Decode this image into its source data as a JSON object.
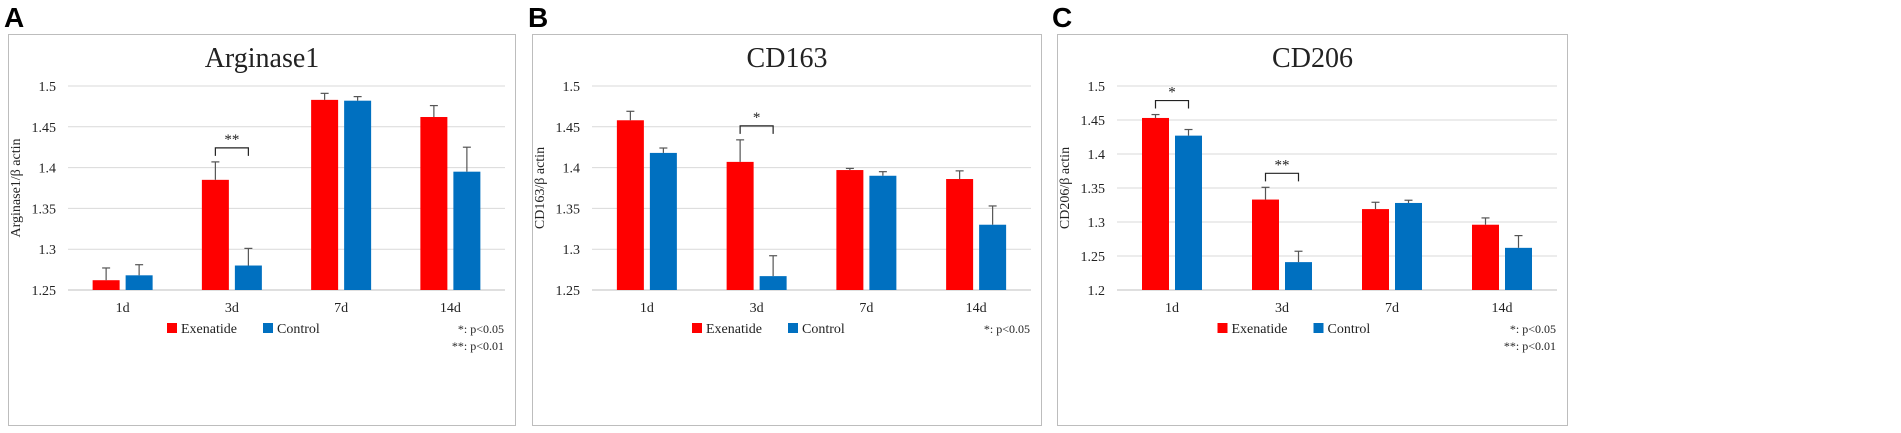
{
  "panels": [
    {
      "letter": "A"
    },
    {
      "letter": "B"
    },
    {
      "letter": "C"
    }
  ],
  "colors": {
    "exenatide": "#ff0000",
    "control": "#0070c0",
    "grid": "#d9d9d9",
    "axis": "#bfbfbf",
    "text": "#222222"
  },
  "chart_data": [
    {
      "type": "bar",
      "title": "Arginase1",
      "ylabel": "Arginase1/β actin",
      "xlabel": "",
      "categories": [
        "1d",
        "3d",
        "7d",
        "14d"
      ],
      "ylim": [
        1.25,
        1.5
      ],
      "yticks": [
        "1.25",
        "1.3",
        "1.35",
        "1.4",
        "1.45",
        "1.5"
      ],
      "series": [
        {
          "name": "Exenatide",
          "values": [
            1.262,
            1.385,
            1.483,
            1.462
          ],
          "errors": [
            0.015,
            0.022,
            0.008,
            0.014
          ]
        },
        {
          "name": "Control",
          "values": [
            1.268,
            1.28,
            1.482,
            1.395
          ],
          "errors": [
            0.013,
            0.021,
            0.005,
            0.03
          ]
        }
      ],
      "annotations": [
        {
          "category": 1,
          "label": "**"
        }
      ],
      "legend": [
        "Exenatide",
        "Control"
      ],
      "notes": [
        "*: p<0.05",
        "**: p<0.01"
      ]
    },
    {
      "type": "bar",
      "title": "CD163",
      "ylabel": "CD163/β actin",
      "xlabel": "",
      "categories": [
        "1d",
        "3d",
        "7d",
        "14d"
      ],
      "ylim": [
        1.25,
        1.5
      ],
      "yticks": [
        "1.25",
        "1.3",
        "1.35",
        "1.4",
        "1.45",
        "1.5"
      ],
      "series": [
        {
          "name": "Exenatide",
          "values": [
            1.458,
            1.407,
            1.397,
            1.386
          ],
          "errors": [
            0.011,
            0.027,
            0.002,
            0.01
          ]
        },
        {
          "name": "Control",
          "values": [
            1.418,
            1.267,
            1.39,
            1.33
          ],
          "errors": [
            0.006,
            0.025,
            0.005,
            0.023
          ]
        }
      ],
      "annotations": [
        {
          "category": 1,
          "label": "*"
        }
      ],
      "legend": [
        "Exenatide",
        "Control"
      ],
      "notes": [
        "*: p<0.05"
      ]
    },
    {
      "type": "bar",
      "title": "CD206",
      "ylabel": "CD206/β actin",
      "xlabel": "",
      "categories": [
        "1d",
        "3d",
        "7d",
        "14d"
      ],
      "ylim": [
        1.2,
        1.5
      ],
      "yticks": [
        "1.2",
        "1.25",
        "1.3",
        "1.35",
        "1.4",
        "1.45",
        "1.5"
      ],
      "series": [
        {
          "name": "Exenatide",
          "values": [
            1.453,
            1.333,
            1.319,
            1.296
          ],
          "errors": [
            0.005,
            0.018,
            0.01,
            0.01
          ]
        },
        {
          "name": "Control",
          "values": [
            1.427,
            1.241,
            1.328,
            1.262
          ],
          "errors": [
            0.009,
            0.016,
            0.004,
            0.018
          ]
        }
      ],
      "annotations": [
        {
          "category": 0,
          "label": "*"
        },
        {
          "category": 1,
          "label": "**"
        }
      ],
      "legend": [
        "Exenatide",
        "Control"
      ],
      "notes": [
        "*: p<0.05",
        "**: p<0.01"
      ]
    }
  ]
}
